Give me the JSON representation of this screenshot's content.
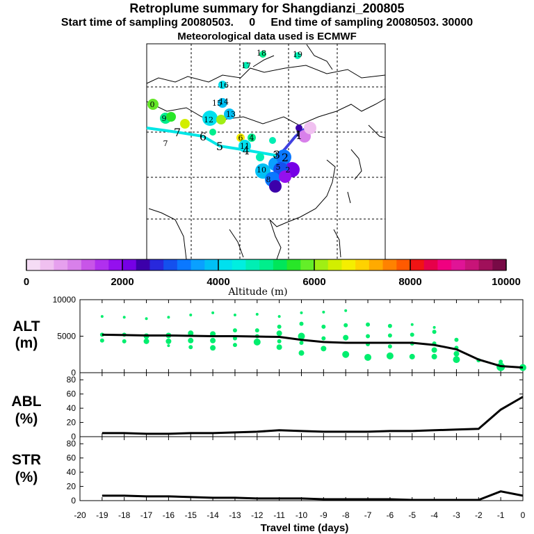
{
  "title": "Retroplume summary for Shangdianzi_200805",
  "subtitle": "Start time of sampling 20080503.     0     End time of sampling 20080503. 30000",
  "met_line": "Meteorological data used is ECMWF",
  "colorbar": {
    "xlabel": "Altitude (m)",
    "ticks": [
      "0",
      "2000",
      "4000",
      "6000",
      "8000",
      "10000"
    ],
    "range": [
      0,
      10000
    ],
    "colors": [
      "#f5dcf5",
      "#f0c0f0",
      "#e6a0ee",
      "#d880ea",
      "#c855e8",
      "#b030ee",
      "#9410ee",
      "#7600e6",
      "#3c00aa",
      "#2828dc",
      "#1450ee",
      "#0a78ff",
      "#0aa0ff",
      "#00c0f5",
      "#00e0ee",
      "#00eee0",
      "#00eeb4",
      "#00ee8c",
      "#00e65a",
      "#28e628",
      "#64ee28",
      "#a0ee14",
      "#d2ee00",
      "#f5ee00",
      "#ffd200",
      "#ffaa00",
      "#ff8200",
      "#ff5a00",
      "#f01414",
      "#e6004a",
      "#f00080",
      "#e01496",
      "#c81478",
      "#a0105a",
      "#780a46"
    ]
  },
  "map": {
    "labels_cyan_trail": [
      "7",
      "6",
      "5",
      "4",
      "3",
      "2",
      "1"
    ],
    "labels_scatter": [
      "0",
      "1",
      "2",
      "3",
      "4",
      "5",
      "6",
      "7",
      "8",
      "9",
      "10",
      "11",
      "12",
      "13",
      "14",
      "15",
      "16",
      "17",
      "18",
      "19"
    ]
  },
  "chart_data": [
    {
      "type": "scatter",
      "panel": "ALT",
      "ylabel_line1": "ALT",
      "ylabel_line2": "(m)",
      "xlim": [
        -20,
        0
      ],
      "ylim": [
        0,
        10000
      ],
      "yticks": [
        "0",
        "5000",
        "10000"
      ],
      "mean_line": {
        "x": [
          -19,
          -18,
          -17,
          -16,
          -15,
          -14,
          -13,
          -12,
          -11,
          -10,
          -9,
          -8,
          -7,
          -6,
          -5,
          -4,
          -3,
          -2,
          -1,
          0
        ],
        "y": [
          5200,
          5150,
          5100,
          5100,
          5050,
          5000,
          5000,
          4950,
          4900,
          4500,
          4200,
          4100,
          4100,
          4100,
          4100,
          3800,
          3200,
          1800,
          900,
          700
        ]
      },
      "points": [
        {
          "x": -19,
          "y": 7700,
          "s": 2
        },
        {
          "x": -19,
          "y": 5200,
          "s": 3
        },
        {
          "x": -19,
          "y": 4400,
          "s": 3
        },
        {
          "x": -18,
          "y": 7600,
          "s": 2
        },
        {
          "x": -18,
          "y": 5200,
          "s": 3
        },
        {
          "x": -18,
          "y": 4300,
          "s": 3
        },
        {
          "x": -17,
          "y": 7400,
          "s": 2
        },
        {
          "x": -17,
          "y": 5000,
          "s": 4
        },
        {
          "x": -17,
          "y": 4300,
          "s": 4
        },
        {
          "x": -16,
          "y": 7600,
          "s": 2
        },
        {
          "x": -16,
          "y": 5100,
          "s": 4
        },
        {
          "x": -16,
          "y": 4300,
          "s": 4
        },
        {
          "x": -16,
          "y": 3700,
          "s": 2
        },
        {
          "x": -15,
          "y": 7900,
          "s": 2
        },
        {
          "x": -15,
          "y": 5400,
          "s": 4
        },
        {
          "x": -15,
          "y": 4400,
          "s": 4
        },
        {
          "x": -15,
          "y": 3500,
          "s": 3
        },
        {
          "x": -14,
          "y": 8200,
          "s": 2
        },
        {
          "x": -14,
          "y": 5300,
          "s": 4
        },
        {
          "x": -14,
          "y": 4400,
          "s": 4
        },
        {
          "x": -14,
          "y": 3400,
          "s": 4
        },
        {
          "x": -13,
          "y": 7900,
          "s": 2
        },
        {
          "x": -13,
          "y": 5800,
          "s": 3
        },
        {
          "x": -13,
          "y": 4700,
          "s": 3
        },
        {
          "x": -13,
          "y": 3800,
          "s": 3
        },
        {
          "x": -12,
          "y": 8000,
          "s": 2
        },
        {
          "x": -12,
          "y": 5800,
          "s": 3
        },
        {
          "x": -12,
          "y": 5000,
          "s": 3
        },
        {
          "x": -12,
          "y": 4200,
          "s": 5
        },
        {
          "x": -11,
          "y": 7700,
          "s": 2
        },
        {
          "x": -11,
          "y": 6300,
          "s": 3
        },
        {
          "x": -11,
          "y": 5400,
          "s": 4
        },
        {
          "x": -11,
          "y": 4300,
          "s": 3
        },
        {
          "x": -11,
          "y": 3500,
          "s": 4
        },
        {
          "x": -10,
          "y": 8200,
          "s": 2
        },
        {
          "x": -10,
          "y": 6700,
          "s": 3
        },
        {
          "x": -10,
          "y": 5000,
          "s": 5
        },
        {
          "x": -10,
          "y": 4100,
          "s": 3
        },
        {
          "x": -10,
          "y": 2700,
          "s": 4
        },
        {
          "x": -9,
          "y": 8300,
          "s": 2
        },
        {
          "x": -9,
          "y": 6300,
          "s": 3
        },
        {
          "x": -9,
          "y": 4700,
          "s": 3
        },
        {
          "x": -9,
          "y": 3300,
          "s": 4
        },
        {
          "x": -8,
          "y": 8500,
          "s": 2
        },
        {
          "x": -8,
          "y": 6500,
          "s": 3
        },
        {
          "x": -8,
          "y": 4800,
          "s": 4
        },
        {
          "x": -8,
          "y": 2500,
          "s": 5
        },
        {
          "x": -7,
          "y": 6600,
          "s": 3
        },
        {
          "x": -7,
          "y": 5000,
          "s": 3
        },
        {
          "x": -7,
          "y": 3900,
          "s": 3
        },
        {
          "x": -7,
          "y": 2100,
          "s": 5
        },
        {
          "x": -6,
          "y": 6400,
          "s": 3
        },
        {
          "x": -6,
          "y": 5100,
          "s": 3
        },
        {
          "x": -6,
          "y": 3600,
          "s": 3
        },
        {
          "x": -6,
          "y": 2300,
          "s": 5
        },
        {
          "x": -5,
          "y": 6600,
          "s": 2
        },
        {
          "x": -5,
          "y": 5200,
          "s": 3
        },
        {
          "x": -5,
          "y": 4000,
          "s": 3
        },
        {
          "x": -5,
          "y": 2200,
          "s": 4
        },
        {
          "x": -4,
          "y": 6200,
          "s": 2
        },
        {
          "x": -4,
          "y": 5600,
          "s": 3
        },
        {
          "x": -4,
          "y": 4000,
          "s": 3
        },
        {
          "x": -4,
          "y": 3100,
          "s": 4
        },
        {
          "x": -4,
          "y": 2200,
          "s": 4
        },
        {
          "x": -3,
          "y": 4500,
          "s": 3
        },
        {
          "x": -3,
          "y": 3400,
          "s": 3
        },
        {
          "x": -3,
          "y": 2600,
          "s": 4
        },
        {
          "x": -3,
          "y": 1800,
          "s": 5
        },
        {
          "x": -2,
          "y": 1700,
          "s": 3
        },
        {
          "x": -1,
          "y": 1500,
          "s": 3
        },
        {
          "x": -1,
          "y": 800,
          "s": 6
        },
        {
          "x": 0,
          "y": 700,
          "s": 5
        }
      ]
    },
    {
      "type": "line",
      "panel": "ABL",
      "ylabel_line1": "ABL",
      "ylabel_line2": "(%)",
      "xlim": [
        -20,
        0
      ],
      "ylim": [
        0,
        90
      ],
      "yticks": [
        "0",
        "20",
        "40",
        "60",
        "80"
      ],
      "x": [
        -19,
        -18,
        -17,
        -16,
        -15,
        -14,
        -13,
        -12,
        -11,
        -10,
        -9,
        -8,
        -7,
        -6,
        -5,
        -4,
        -3,
        -2,
        -1,
        0
      ],
      "y": [
        5,
        5,
        4,
        4,
        5,
        5,
        6,
        7,
        9,
        8,
        7,
        7,
        7,
        8,
        8,
        9,
        10,
        11,
        38,
        56
      ]
    },
    {
      "type": "line",
      "panel": "STR",
      "ylabel_line1": "STR",
      "ylabel_line2": "(%)",
      "xlim": [
        -20,
        0
      ],
      "ylim": [
        0,
        90
      ],
      "yticks": [
        "0",
        "20",
        "40",
        "60",
        "80"
      ],
      "x": [
        -19,
        -18,
        -17,
        -16,
        -15,
        -14,
        -13,
        -12,
        -11,
        -10,
        -9,
        -8,
        -7,
        -6,
        -5,
        -4,
        -3,
        -2,
        -1,
        0
      ],
      "y": [
        7,
        7,
        6,
        6,
        5,
        4,
        4,
        3,
        3,
        3,
        2,
        2,
        2,
        2,
        1,
        1,
        1,
        1,
        13,
        7
      ],
      "xlabel": "Travel time (days)",
      "xticks": [
        "-20",
        "-19",
        "-18",
        "-17",
        "-16",
        "-15",
        "-14",
        "-13",
        "-12",
        "-11",
        "-10",
        "-9",
        "-8",
        "-7",
        "-6",
        "-5",
        "-4",
        "-3",
        "-2",
        "-1",
        "0"
      ]
    }
  ]
}
